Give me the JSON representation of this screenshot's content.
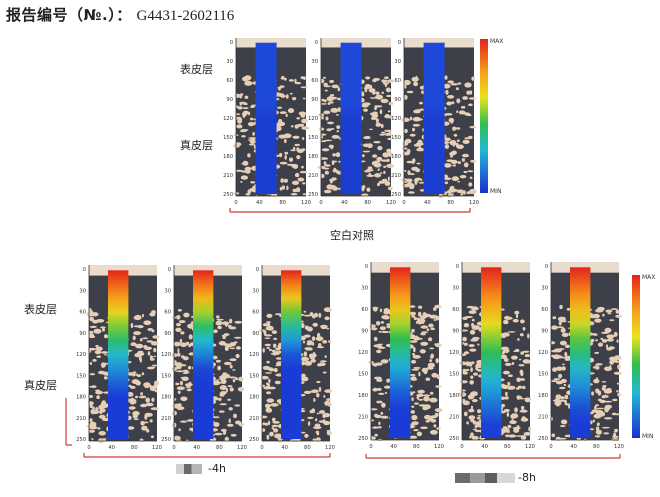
{
  "report": {
    "label": "报告编号（№.）：",
    "number": "G4431-2602116"
  },
  "layers": {
    "epidermis": "表皮层",
    "dermis": "真皮层"
  },
  "scale": {
    "max": "MAX",
    "min": "MIN"
  },
  "y_ticks": [
    "0",
    "30",
    "60",
    "90",
    "120",
    "150",
    "180",
    "210",
    "250"
  ],
  "x_ticks": [
    "0",
    "40",
    "80",
    "120"
  ],
  "groups": [
    {
      "caption": "空白对照",
      "penetration": [
        0.0,
        0.0,
        0.0
      ]
    },
    {
      "caption": "-4h",
      "penetration": [
        0.55,
        0.45,
        0.4
      ]
    },
    {
      "caption": "-8h",
      "penetration": [
        0.6,
        0.7,
        0.65
      ]
    }
  ],
  "colors": {
    "bracket": "#d43a2a",
    "tissue": "#3d4048",
    "pores": "#e7cfb6",
    "top_band": "#eadccd"
  }
}
